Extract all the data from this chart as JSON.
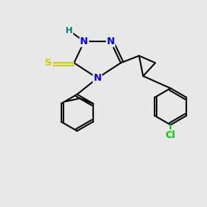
{
  "bg_color": "#e8e8e8",
  "atom_colors": {
    "N": "#0000ff",
    "S": "#cccc00",
    "Cl": "#00cc00",
    "H": "#008080",
    "C": "#000000"
  },
  "bond_color": "#000000",
  "bond_width": 1.6
}
